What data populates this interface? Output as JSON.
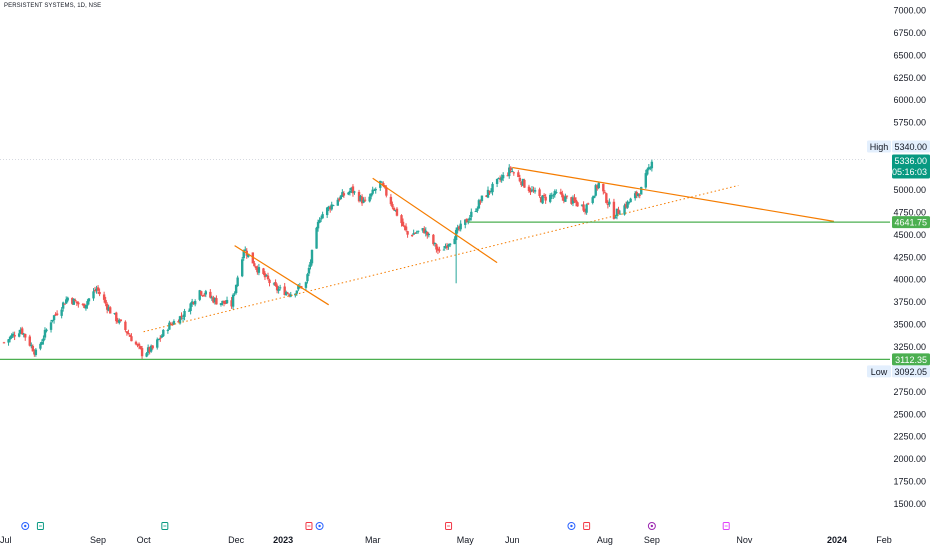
{
  "title": "PERSISTENT SYSTEMS, 1D, NSE",
  "colors": {
    "up": "#26a69a",
    "down": "#ef5350",
    "trend": "#f57c00",
    "level": "#4caf50",
    "accent": "#089981"
  },
  "chart_data": {
    "type": "candlestick",
    "ylim": [
      1400,
      7050
    ],
    "y_ticks": [
      "7000.00",
      "6750.00",
      "6500.00",
      "6250.00",
      "6000.00",
      "5750.00",
      "5500.00",
      "5250.00",
      "5000.00",
      "4750.00",
      "4500.00",
      "4250.00",
      "4000.00",
      "3750.00",
      "3500.00",
      "3250.00",
      "3000.00",
      "2750.00",
      "2500.00",
      "2250.00",
      "2000.00",
      "1750.00",
      "1500.00"
    ],
    "x_labels": [
      {
        "label": "Jul",
        "date": "2022-07-01"
      },
      {
        "label": "Sep",
        "date": "2022-09-01"
      },
      {
        "label": "Oct",
        "date": "2022-10-01"
      },
      {
        "label": "Dec",
        "date": "2022-12-01"
      },
      {
        "label": "2023",
        "date": "2023-01-01",
        "bold": true
      },
      {
        "label": "Mar",
        "date": "2023-03-01"
      },
      {
        "label": "May",
        "date": "2023-05-01"
      },
      {
        "label": "Jun",
        "date": "2023-06-01"
      },
      {
        "label": "Aug",
        "date": "2023-08-01"
      },
      {
        "label": "Sep",
        "date": "2023-09-01"
      },
      {
        "label": "Nov",
        "date": "2023-11-01"
      },
      {
        "label": "2024",
        "date": "2024-01-01",
        "bold": true
      },
      {
        "label": "Feb",
        "date": "2024-02-01"
      }
    ],
    "price_path": [
      [
        "2022-07-01",
        3300
      ],
      [
        "2022-07-12",
        3450
      ],
      [
        "2022-07-22",
        3180
      ],
      [
        "2022-08-01",
        3550
      ],
      [
        "2022-08-12",
        3800
      ],
      [
        "2022-08-22",
        3700
      ],
      [
        "2022-08-31",
        3900
      ],
      [
        "2022-09-09",
        3650
      ],
      [
        "2022-09-20",
        3420
      ],
      [
        "2022-09-30",
        3180
      ],
      [
        "2022-10-07",
        3230
      ],
      [
        "2022-10-17",
        3480
      ],
      [
        "2022-10-28",
        3620
      ],
      [
        "2022-11-07",
        3880
      ],
      [
        "2022-11-18",
        3760
      ],
      [
        "2022-11-28",
        3720
      ],
      [
        "2022-12-06",
        4350
      ],
      [
        "2022-12-16",
        4100
      ],
      [
        "2022-12-27",
        3900
      ],
      [
        "2023-01-06",
        3850
      ],
      [
        "2023-01-16",
        3960
      ],
      [
        "2023-01-25",
        4700
      ],
      [
        "2023-02-06",
        4900
      ],
      [
        "2023-02-15",
        5000
      ],
      [
        "2023-02-24",
        4850
      ],
      [
        "2023-03-06",
        5080
      ],
      [
        "2023-03-15",
        4800
      ],
      [
        "2023-03-24",
        4500
      ],
      [
        "2023-04-04",
        4550
      ],
      [
        "2023-04-14",
        4300
      ],
      [
        "2023-04-24",
        4500
      ],
      [
        "2023-05-03",
        4680
      ],
      [
        "2023-05-12",
        4900
      ],
      [
        "2023-05-22",
        5080
      ],
      [
        "2023-05-31",
        5230
      ],
      [
        "2023-06-09",
        5060
      ],
      [
        "2023-06-20",
        4900
      ],
      [
        "2023-06-30",
        4950
      ],
      [
        "2023-07-10",
        4880
      ],
      [
        "2023-07-19",
        4800
      ],
      [
        "2023-07-28",
        5070
      ],
      [
        "2023-08-07",
        4720
      ],
      [
        "2023-08-16",
        4850
      ],
      [
        "2023-08-25",
        5000
      ],
      [
        "2023-09-01",
        5336
      ]
    ],
    "spike_low": {
      "date": "2023-04-25",
      "low": 3960
    },
    "trendlines": [
      {
        "from": [
          "2022-11-30",
          4380
        ],
        "to": [
          "2023-01-31",
          3720
        ],
        "color": "#f57c00",
        "style": "solid"
      },
      {
        "from": [
          "2023-03-01",
          5130
        ],
        "to": [
          "2023-05-22",
          4190
        ],
        "color": "#f57c00",
        "style": "solid"
      },
      {
        "from": [
          "2023-06-01",
          5250
        ],
        "to": [
          "2023-12-30",
          4650
        ],
        "color": "#f57c00",
        "style": "solid"
      },
      {
        "from": [
          "2022-10-01",
          3420
        ],
        "to": [
          "2023-10-28",
          5050
        ],
        "color": "#f57c00",
        "style": "dotted"
      }
    ],
    "levels": [
      {
        "value": 4641.75,
        "label": "4641.75",
        "from": "2023-05-03",
        "color": "#4caf50"
      },
      {
        "value": 3112.35,
        "label": "3112.35",
        "color": "#4caf50"
      }
    ],
    "high": {
      "label": "High",
      "value": "5340.00"
    },
    "low": {
      "label": "Low",
      "value": "3092.05"
    },
    "last": {
      "value": "5336.00",
      "countdown": "05:16:03"
    },
    "event_markers": [
      {
        "date": "2022-07-15",
        "kind": "E",
        "color": "#2962ff"
      },
      {
        "date": "2022-07-25",
        "kind": "D",
        "color": "#089981"
      },
      {
        "date": "2022-10-15",
        "kind": "D",
        "color": "#089981"
      },
      {
        "date": "2023-01-18",
        "kind": "S",
        "color": "#f23645"
      },
      {
        "date": "2023-01-25",
        "kind": "E",
        "color": "#2962ff"
      },
      {
        "date": "2023-04-20",
        "kind": "S",
        "color": "#f23645"
      },
      {
        "date": "2023-07-10",
        "kind": "E",
        "color": "#2962ff"
      },
      {
        "date": "2023-07-20",
        "kind": "S",
        "color": "#f23645"
      },
      {
        "date": "2023-09-01",
        "kind": "E",
        "color": "#9c27b0"
      },
      {
        "date": "2023-10-20",
        "kind": "S",
        "color": "#e040fb"
      }
    ]
  }
}
